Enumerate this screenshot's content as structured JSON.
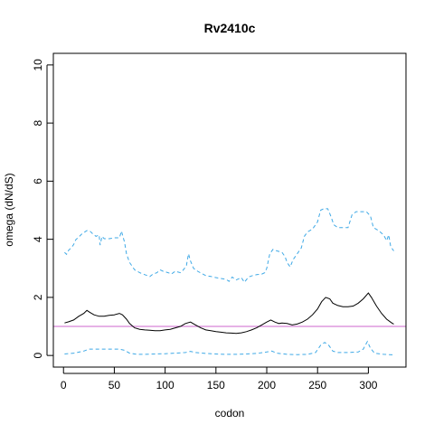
{
  "chart_data": {
    "type": "line",
    "title": "Rv2410c",
    "xlabel": "codon",
    "ylabel": "omega (dN/dS)",
    "xlim": [
      -10,
      337
    ],
    "ylim": [
      -0.4,
      10.4
    ],
    "xticks": [
      0,
      50,
      100,
      150,
      200,
      250,
      300
    ],
    "yticks": [
      0,
      2,
      4,
      6,
      8,
      10
    ],
    "reference_line": {
      "y": 1,
      "color": "#cc66cc"
    },
    "colors": {
      "estimate": "#000000",
      "bounds": "#3fa9e6"
    },
    "series": [
      {
        "style": "solid",
        "color": "#000000",
        "points": [
          [
            1,
            1.12
          ],
          [
            5,
            1.16
          ],
          [
            10,
            1.22
          ],
          [
            15,
            1.35
          ],
          [
            20,
            1.45
          ],
          [
            23,
            1.55
          ],
          [
            26,
            1.48
          ],
          [
            30,
            1.4
          ],
          [
            35,
            1.35
          ],
          [
            40,
            1.35
          ],
          [
            45,
            1.38
          ],
          [
            50,
            1.4
          ],
          [
            55,
            1.45
          ],
          [
            58,
            1.4
          ],
          [
            62,
            1.25
          ],
          [
            65,
            1.1
          ],
          [
            70,
            0.95
          ],
          [
            75,
            0.9
          ],
          [
            80,
            0.88
          ],
          [
            85,
            0.87
          ],
          [
            90,
            0.85
          ],
          [
            95,
            0.85
          ],
          [
            100,
            0.88
          ],
          [
            105,
            0.9
          ],
          [
            110,
            0.95
          ],
          [
            115,
            1.0
          ],
          [
            120,
            1.1
          ],
          [
            125,
            1.15
          ],
          [
            130,
            1.05
          ],
          [
            135,
            0.95
          ],
          [
            140,
            0.88
          ],
          [
            145,
            0.85
          ],
          [
            150,
            0.82
          ],
          [
            155,
            0.8
          ],
          [
            160,
            0.78
          ],
          [
            165,
            0.77
          ],
          [
            170,
            0.76
          ],
          [
            175,
            0.78
          ],
          [
            180,
            0.82
          ],
          [
            185,
            0.88
          ],
          [
            190,
            0.95
          ],
          [
            195,
            1.05
          ],
          [
            200,
            1.15
          ],
          [
            204,
            1.22
          ],
          [
            208,
            1.15
          ],
          [
            212,
            1.1
          ],
          [
            215,
            1.12
          ],
          [
            220,
            1.1
          ],
          [
            225,
            1.05
          ],
          [
            230,
            1.08
          ],
          [
            235,
            1.15
          ],
          [
            240,
            1.25
          ],
          [
            245,
            1.4
          ],
          [
            250,
            1.6
          ],
          [
            254,
            1.85
          ],
          [
            258,
            2.0
          ],
          [
            262,
            1.95
          ],
          [
            265,
            1.8
          ],
          [
            270,
            1.72
          ],
          [
            275,
            1.68
          ],
          [
            280,
            1.68
          ],
          [
            285,
            1.7
          ],
          [
            290,
            1.8
          ],
          [
            295,
            1.95
          ],
          [
            300,
            2.15
          ],
          [
            303,
            2.0
          ],
          [
            308,
            1.7
          ],
          [
            313,
            1.45
          ],
          [
            318,
            1.25
          ],
          [
            323,
            1.12
          ],
          [
            325,
            1.08
          ]
        ]
      },
      {
        "style": "dashed",
        "color": "#3fa9e6",
        "points": [
          [
            1,
            3.55
          ],
          [
            3,
            3.48
          ],
          [
            5,
            3.62
          ],
          [
            8,
            3.72
          ],
          [
            10,
            3.82
          ],
          [
            12,
            3.98
          ],
          [
            15,
            4.08
          ],
          [
            18,
            4.18
          ],
          [
            21,
            4.25
          ],
          [
            23,
            4.3
          ],
          [
            26,
            4.28
          ],
          [
            29,
            4.18
          ],
          [
            32,
            4.1
          ],
          [
            35,
            4.15
          ],
          [
            36,
            3.8
          ],
          [
            38,
            4.1
          ],
          [
            40,
            4.02
          ],
          [
            45,
            4.02
          ],
          [
            50,
            4.05
          ],
          [
            55,
            4.05
          ],
          [
            57,
            4.28
          ],
          [
            60,
            3.9
          ],
          [
            62,
            3.5
          ],
          [
            65,
            3.2
          ],
          [
            70,
            2.95
          ],
          [
            75,
            2.85
          ],
          [
            80,
            2.78
          ],
          [
            85,
            2.72
          ],
          [
            88,
            2.8
          ],
          [
            92,
            2.85
          ],
          [
            95,
            2.95
          ],
          [
            98,
            2.9
          ],
          [
            100,
            2.88
          ],
          [
            103,
            2.85
          ],
          [
            106,
            2.8
          ],
          [
            110,
            2.9
          ],
          [
            115,
            2.85
          ],
          [
            118,
            2.95
          ],
          [
            121,
            3.1
          ],
          [
            123,
            3.5
          ],
          [
            125,
            3.25
          ],
          [
            128,
            3.0
          ],
          [
            132,
            2.9
          ],
          [
            136,
            2.82
          ],
          [
            140,
            2.75
          ],
          [
            145,
            2.72
          ],
          [
            150,
            2.68
          ],
          [
            155,
            2.65
          ],
          [
            160,
            2.62
          ],
          [
            163,
            2.55
          ],
          [
            166,
            2.7
          ],
          [
            170,
            2.6
          ],
          [
            175,
            2.68
          ],
          [
            178,
            2.52
          ],
          [
            182,
            2.7
          ],
          [
            186,
            2.75
          ],
          [
            190,
            2.78
          ],
          [
            195,
            2.8
          ],
          [
            198,
            2.85
          ],
          [
            200,
            3.0
          ],
          [
            203,
            3.5
          ],
          [
            206,
            3.65
          ],
          [
            210,
            3.6
          ],
          [
            215,
            3.55
          ],
          [
            218,
            3.4
          ],
          [
            220,
            3.2
          ],
          [
            223,
            3.05
          ],
          [
            226,
            3.3
          ],
          [
            230,
            3.5
          ],
          [
            234,
            3.7
          ],
          [
            237,
            4.1
          ],
          [
            240,
            4.25
          ],
          [
            245,
            4.35
          ],
          [
            250,
            4.6
          ],
          [
            253,
            5.0
          ],
          [
            256,
            5.05
          ],
          [
            260,
            5.05
          ],
          [
            263,
            4.8
          ],
          [
            266,
            4.5
          ],
          [
            270,
            4.4
          ],
          [
            275,
            4.4
          ],
          [
            280,
            4.4
          ],
          [
            284,
            4.85
          ],
          [
            288,
            4.95
          ],
          [
            292,
            4.95
          ],
          [
            298,
            4.95
          ],
          [
            302,
            4.8
          ],
          [
            305,
            4.4
          ],
          [
            310,
            4.3
          ],
          [
            315,
            4.15
          ],
          [
            318,
            3.95
          ],
          [
            320,
            4.15
          ],
          [
            322,
            3.75
          ],
          [
            325,
            3.6
          ]
        ]
      },
      {
        "style": "dashed",
        "color": "#3fa9e6",
        "points": [
          [
            1,
            0.05
          ],
          [
            10,
            0.08
          ],
          [
            20,
            0.15
          ],
          [
            25,
            0.22
          ],
          [
            35,
            0.22
          ],
          [
            45,
            0.22
          ],
          [
            55,
            0.22
          ],
          [
            60,
            0.18
          ],
          [
            65,
            0.08
          ],
          [
            72,
            0.04
          ],
          [
            80,
            0.04
          ],
          [
            90,
            0.05
          ],
          [
            100,
            0.06
          ],
          [
            110,
            0.08
          ],
          [
            120,
            0.1
          ],
          [
            125,
            0.14
          ],
          [
            130,
            0.1
          ],
          [
            140,
            0.07
          ],
          [
            150,
            0.05
          ],
          [
            160,
            0.04
          ],
          [
            170,
            0.04
          ],
          [
            180,
            0.05
          ],
          [
            190,
            0.07
          ],
          [
            200,
            0.12
          ],
          [
            205,
            0.15
          ],
          [
            210,
            0.08
          ],
          [
            220,
            0.04
          ],
          [
            230,
            0.03
          ],
          [
            240,
            0.04
          ],
          [
            248,
            0.1
          ],
          [
            253,
            0.35
          ],
          [
            257,
            0.45
          ],
          [
            261,
            0.35
          ],
          [
            265,
            0.15
          ],
          [
            270,
            0.1
          ],
          [
            280,
            0.1
          ],
          [
            290,
            0.12
          ],
          [
            295,
            0.22
          ],
          [
            299,
            0.48
          ],
          [
            302,
            0.25
          ],
          [
            306,
            0.08
          ],
          [
            315,
            0.04
          ],
          [
            325,
            0.02
          ]
        ]
      }
    ]
  }
}
